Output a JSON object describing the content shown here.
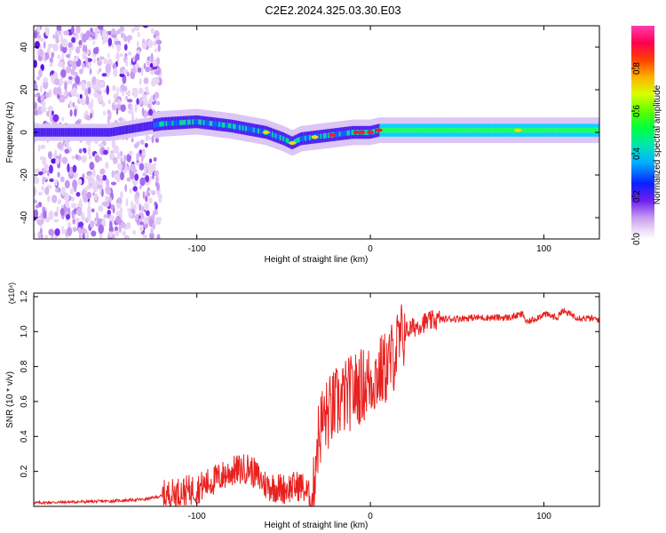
{
  "title": "C2E2.2024.325.03.30.E03",
  "chart_data": [
    {
      "type": "heatmap",
      "xlabel": "Height of straight line (km)",
      "ylabel": "Frequency (Hz)",
      "xlim": [
        -194,
        132
      ],
      "ylim": [
        -50,
        50
      ],
      "x_ticks": [
        -100,
        0,
        100
      ],
      "y_ticks": [
        -40,
        -20,
        0,
        20,
        40
      ],
      "colorbar": {
        "label": "Normalized spectral amplitude",
        "range": [
          0,
          1
        ],
        "ticks": [
          "0.0",
          "0.2",
          "0.4",
          "0.6",
          "0.8"
        ]
      },
      "ridge": {
        "description_points_x": [
          -150,
          -120,
          -100,
          -80,
          -60,
          -50,
          -45,
          -40,
          -30,
          -20,
          -10,
          0,
          5,
          20,
          50,
          100,
          132
        ],
        "frequency_hz": [
          0,
          4,
          5,
          3,
          0,
          -3,
          -5,
          -3,
          -2,
          -1,
          0,
          0,
          1,
          1,
          1,
          1,
          1
        ]
      },
      "noise_region_x": [
        -194,
        -121
      ]
    },
    {
      "type": "line",
      "xlabel": "Height of straight line (km)",
      "ylabel": "SNR (10 * v/v)",
      "y_multiplier": "(x10⁴)",
      "xlim": [
        -194,
        132
      ],
      "ylim": [
        0,
        1.22
      ],
      "x_ticks": [
        -100,
        0,
        100
      ],
      "y_ticks": [
        "0.2",
        "0.4",
        "0.6",
        "0.8",
        "1.0",
        "1.2"
      ],
      "y_tick_values": [
        0.2,
        0.4,
        0.6,
        0.8,
        1.0,
        1.2
      ],
      "color": "#e8201e",
      "x": [
        -194,
        -150,
        -130,
        -120,
        -100,
        -80,
        -70,
        -60,
        -50,
        -40,
        -33,
        -31,
        -28,
        -20,
        -10,
        0,
        10,
        15,
        20,
        30,
        40,
        60,
        80,
        88,
        90,
        100,
        108,
        110,
        120,
        132
      ],
      "y": [
        0.02,
        0.03,
        0.04,
        0.06,
        0.1,
        0.2,
        0.22,
        0.12,
        0.1,
        0.12,
        0.03,
        0.35,
        0.48,
        0.58,
        0.66,
        0.72,
        0.8,
        0.9,
        1.0,
        1.05,
        1.07,
        1.08,
        1.08,
        1.1,
        1.05,
        1.1,
        1.08,
        1.12,
        1.08,
        1.07
      ]
    }
  ]
}
